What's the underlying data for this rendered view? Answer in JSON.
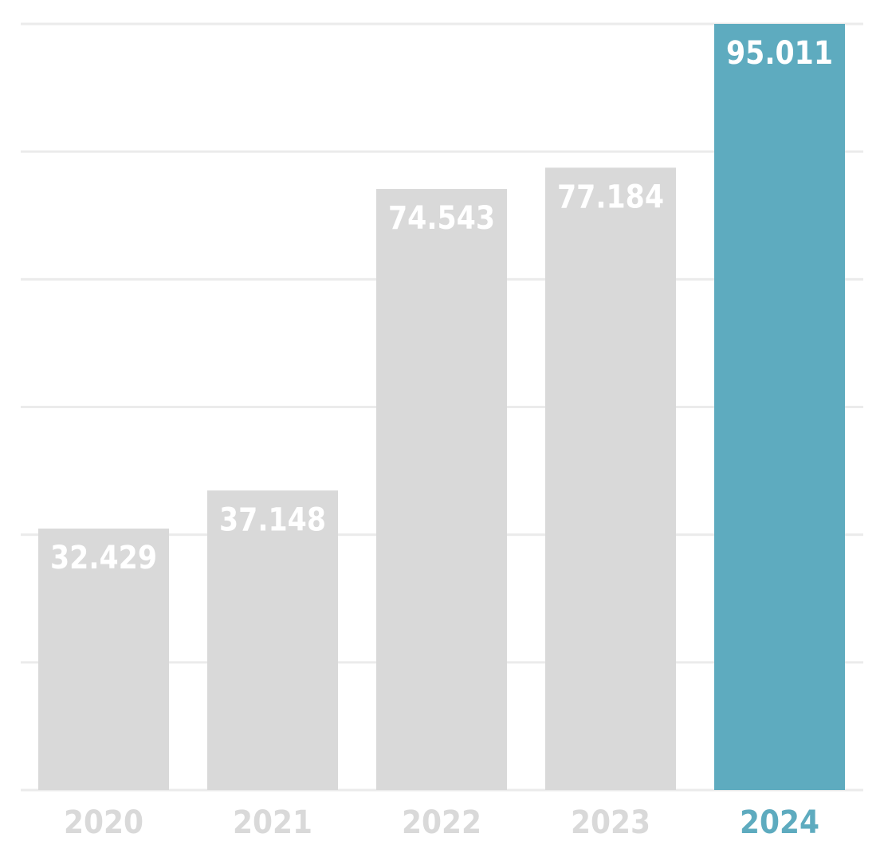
{
  "chart_data": {
    "type": "bar",
    "title": "",
    "xlabel": "",
    "ylabel": "",
    "categories": [
      "2020",
      "2021",
      "2022",
      "2023",
      "2024"
    ],
    "values": [
      32429,
      37148,
      74543,
      77184,
      95011
    ],
    "value_labels": [
      "32.429",
      "37.148",
      "74.543",
      "77.184",
      "95.011"
    ],
    "ylim": [
      0,
      95011
    ],
    "gridlines": 6,
    "grid": true,
    "highlight_index": 4,
    "colors": {
      "bar": "#d9d9d9",
      "highlight": "#5eabbf",
      "grid": "#ebebeb",
      "category_label": "#d9d9d9",
      "value_label": "#ffffff"
    }
  }
}
